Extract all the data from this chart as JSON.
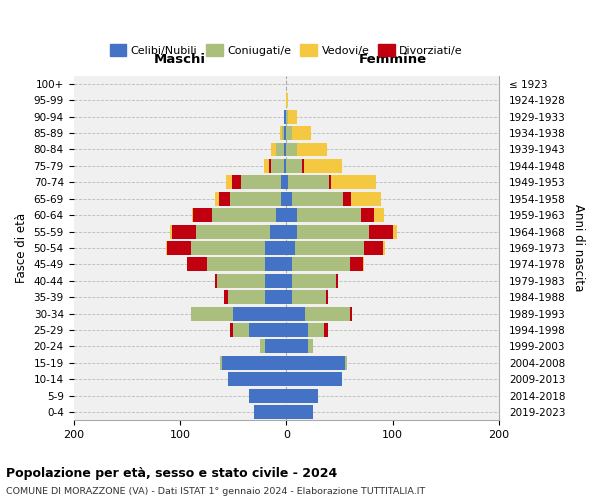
{
  "age_groups": [
    "100+",
    "95-99",
    "90-94",
    "85-89",
    "80-84",
    "75-79",
    "70-74",
    "65-69",
    "60-64",
    "55-59",
    "50-54",
    "45-49",
    "40-44",
    "35-39",
    "30-34",
    "25-29",
    "20-24",
    "15-19",
    "10-14",
    "5-9",
    "0-4"
  ],
  "birth_years": [
    "≤ 1923",
    "1924-1928",
    "1929-1933",
    "1934-1938",
    "1939-1943",
    "1944-1948",
    "1949-1953",
    "1954-1958",
    "1959-1963",
    "1964-1968",
    "1969-1973",
    "1974-1978",
    "1979-1983",
    "1984-1988",
    "1989-1993",
    "1994-1998",
    "1999-2003",
    "2004-2008",
    "2009-2013",
    "2014-2018",
    "2019-2023"
  ],
  "colors": {
    "celibi": "#4472C4",
    "coniugati": "#AABF7E",
    "vedovi": "#F5C842",
    "divorziati": "#C00010"
  },
  "maschi": {
    "celibi": [
      0,
      0,
      2,
      2,
      2,
      2,
      5,
      5,
      10,
      15,
      20,
      20,
      20,
      20,
      50,
      35,
      20,
      60,
      55,
      35,
      30
    ],
    "coniugati": [
      0,
      0,
      0,
      2,
      8,
      12,
      38,
      48,
      60,
      70,
      70,
      55,
      45,
      35,
      40,
      15,
      5,
      2,
      0,
      0,
      0
    ],
    "vedovi": [
      0,
      0,
      0,
      2,
      4,
      5,
      6,
      4,
      1,
      2,
      1,
      0,
      0,
      0,
      0,
      0,
      0,
      0,
      0,
      0,
      0
    ],
    "divorziati": [
      0,
      0,
      0,
      0,
      0,
      2,
      8,
      10,
      18,
      22,
      22,
      18,
      2,
      4,
      0,
      3,
      0,
      0,
      0,
      0,
      0
    ]
  },
  "femmine": {
    "nubili": [
      0,
      0,
      0,
      0,
      0,
      0,
      2,
      5,
      10,
      10,
      8,
      5,
      5,
      5,
      18,
      20,
      20,
      55,
      52,
      30,
      25
    ],
    "coniugate": [
      0,
      0,
      2,
      5,
      10,
      15,
      38,
      48,
      60,
      68,
      65,
      55,
      42,
      32,
      42,
      15,
      5,
      2,
      0,
      0,
      0
    ],
    "vedove": [
      0,
      2,
      8,
      18,
      28,
      35,
      42,
      28,
      10,
      4,
      2,
      1,
      0,
      0,
      0,
      0,
      0,
      0,
      0,
      0,
      0
    ],
    "divorziate": [
      0,
      0,
      0,
      0,
      0,
      2,
      2,
      8,
      12,
      22,
      18,
      12,
      2,
      2,
      2,
      4,
      0,
      0,
      0,
      0,
      0
    ]
  },
  "title": "Popolazione per età, sesso e stato civile - 2024",
  "subtitle": "COMUNE DI MORAZZONE (VA) - Dati ISTAT 1° gennaio 2024 - Elaborazione TUTTITALIA.IT",
  "xlabel_left": "Maschi",
  "xlabel_right": "Femmine",
  "ylabel": "Fasce di età",
  "ylabel_right": "Anni di nascita",
  "xlim": 200,
  "bg_color": "#FFFFFF",
  "grid_color": "#CCCCCC"
}
